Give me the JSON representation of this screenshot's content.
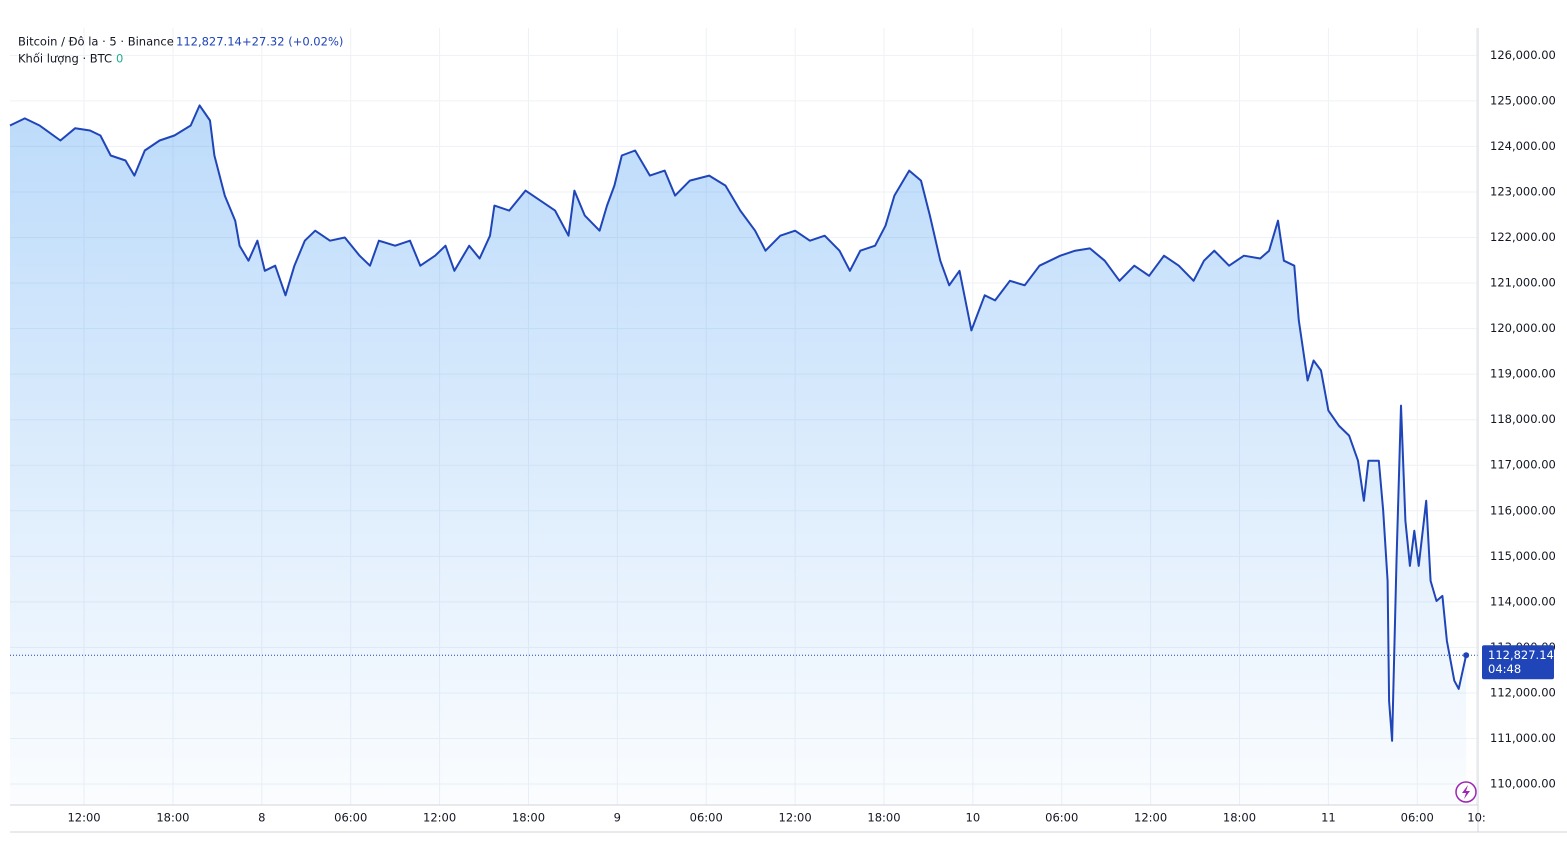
{
  "chart_data": {
    "type": "area",
    "header": {
      "symbol": "Bitcoin / Đô la · 5 · Binance",
      "price": "112,827.14",
      "change": "+27.32 (+0.02%)",
      "volume_label": "Khối lượng · BTC",
      "volume_value": "0"
    },
    "last_price": {
      "value": 112827.14,
      "label": "112,827.14",
      "countdown": "04:48"
    },
    "series": [
      {
        "name": "Bitcoin",
        "color": "#1f45b8",
        "x": [
          7.0,
          8.0,
          9.0,
          10.4,
          11.4,
          12.4,
          13.1,
          13.8,
          14.8,
          15.4,
          16.1,
          17.1,
          18.1,
          19.2,
          19.8,
          20.5,
          20.8,
          21.5,
          22.2,
          22.5,
          23.1,
          23.7,
          24.2,
          24.9,
          25.6,
          26.2,
          26.9,
          27.6,
          28.6,
          29.6,
          30.6,
          31.3,
          31.9,
          33.0,
          34.0,
          34.7,
          35.7,
          36.4,
          37.0,
          38.0,
          38.7,
          39.4,
          39.7,
          40.7,
          41.8,
          42.8,
          43.8,
          44.7,
          45.1,
          45.8,
          46.8,
          47.3,
          47.8,
          48.3,
          49.2,
          50.2,
          51.2,
          51.9,
          52.9,
          54.2,
          55.3,
          56.3,
          57.3,
          58.0,
          59.0,
          60.0,
          61.0,
          62.0,
          63.0,
          63.7,
          64.4,
          65.4,
          66.1,
          66.7,
          67.7,
          68.5,
          69.1,
          69.8,
          70.4,
          71.1,
          71.9,
          72.8,
          73.5,
          74.5,
          75.5,
          76.5,
          77.9,
          78.9,
          79.9,
          80.9,
          81.9,
          82.9,
          83.9,
          84.9,
          85.9,
          86.9,
          87.6,
          88.3,
          89.3,
          90.3,
          91.4,
          92.0,
          92.6,
          93.0,
          93.7,
          94.0,
          94.6,
          95.0,
          95.5,
          96.0,
          96.7,
          97.4,
          98.0,
          98.4,
          98.7,
          99.4,
          99.7,
          100.0,
          100.1,
          100.3,
          100.6,
          100.9,
          101.2,
          101.5,
          101.8,
          102.1,
          102.6,
          102.9,
          103.3,
          103.7,
          104.0,
          104.5,
          104.8,
          105.3
        ],
        "values": [
          124460,
          124615,
          124460,
          124130,
          124400,
          124350,
          124240,
          123800,
          123690,
          123360,
          123910,
          124130,
          124240,
          124460,
          124900,
          124570,
          123800,
          122920,
          122370,
          121820,
          121490,
          121930,
          121270,
          121380,
          120730,
          121380,
          121930,
          122150,
          121930,
          122000,
          121600,
          121380,
          121930,
          121820,
          121930,
          121380,
          121600,
          121820,
          121270,
          121820,
          121540,
          122040,
          122700,
          122590,
          123030,
          122810,
          122590,
          122040,
          123030,
          122480,
          122150,
          122700,
          123140,
          123800,
          123910,
          123360,
          123470,
          122920,
          123250,
          123360,
          123140,
          122590,
          122150,
          121710,
          122040,
          122150,
          121930,
          122040,
          121710,
          121270,
          121710,
          121820,
          122260,
          122920,
          123470,
          123250,
          122480,
          121490,
          120950,
          121270,
          119960,
          120730,
          120620,
          121050,
          120950,
          121380,
          121600,
          121710,
          121760,
          121490,
          121050,
          121380,
          121160,
          121600,
          121380,
          121050,
          121490,
          121710,
          121380,
          121600,
          121540,
          121710,
          122370,
          121490,
          121380,
          120180,
          118860,
          119300,
          119080,
          118200,
          117870,
          117650,
          117100,
          116220,
          117100,
          117100,
          116000,
          114460,
          111820,
          110950,
          114900,
          118310,
          115780,
          114790,
          115560,
          114790,
          116220,
          114460,
          114020,
          114130,
          113140,
          112270,
          112090,
          112827.14
        ]
      }
    ],
    "xlim": [
      7,
      106.1
    ],
    "xticks": [
      {
        "value": 12,
        "label": "12:00"
      },
      {
        "value": 18,
        "label": "18:00"
      },
      {
        "value": 24,
        "label": "8"
      },
      {
        "value": 30,
        "label": "06:00"
      },
      {
        "value": 36,
        "label": "12:00"
      },
      {
        "value": 42,
        "label": "18:00"
      },
      {
        "value": 48,
        "label": "9"
      },
      {
        "value": 54,
        "label": "06:00"
      },
      {
        "value": 60,
        "label": "12:00"
      },
      {
        "value": 66,
        "label": "18:00"
      },
      {
        "value": 72,
        "label": "10"
      },
      {
        "value": 78,
        "label": "06:00"
      },
      {
        "value": 84,
        "label": "12:00"
      },
      {
        "value": 90,
        "label": "18:00"
      },
      {
        "value": 96,
        "label": "11"
      },
      {
        "value": 102,
        "label": "06:00"
      },
      {
        "value": 106,
        "label": "10:"
      }
    ],
    "ylim": [
      109540,
      126600
    ],
    "yticks": [
      {
        "value": 110000,
        "label": "110,000.00"
      },
      {
        "value": 111000,
        "label": "111,000.00"
      },
      {
        "value": 112000,
        "label": "112,000.00"
      },
      {
        "value": 113000,
        "label": "113,000.00"
      },
      {
        "value": 114000,
        "label": "114,000.00"
      },
      {
        "value": 115000,
        "label": "115,000.00"
      },
      {
        "value": 116000,
        "label": "116,000.00"
      },
      {
        "value": 117000,
        "label": "117,000.00"
      },
      {
        "value": 118000,
        "label": "118,000.00"
      },
      {
        "value": 119000,
        "label": "119,000.00"
      },
      {
        "value": 120000,
        "label": "120,000.00"
      },
      {
        "value": 121000,
        "label": "121,000.00"
      },
      {
        "value": 122000,
        "label": "122,000.00"
      },
      {
        "value": 123000,
        "label": "123,000.00"
      },
      {
        "value": 124000,
        "label": "124,000.00"
      },
      {
        "value": 125000,
        "label": "125,000.00"
      },
      {
        "value": 126000,
        "label": "126,000.00"
      }
    ],
    "grid": true
  }
}
